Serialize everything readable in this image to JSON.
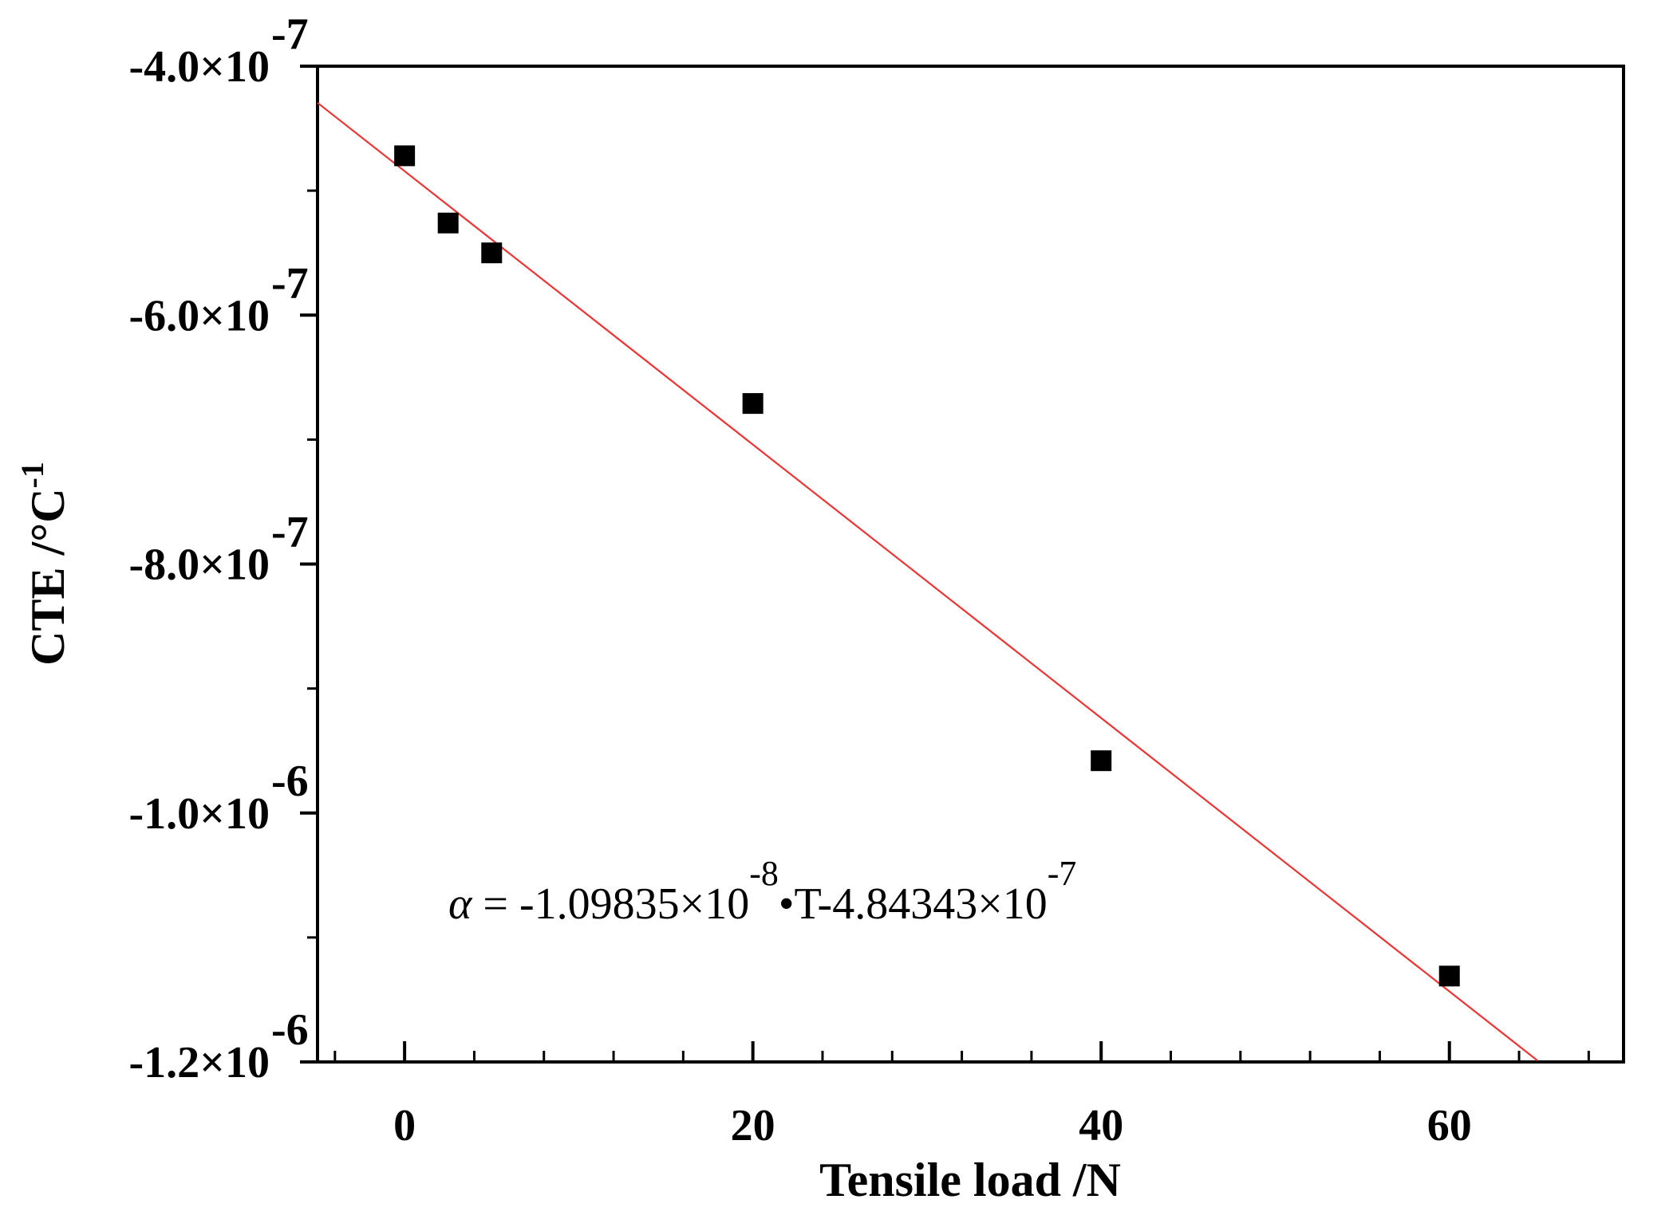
{
  "chart_data": {
    "type": "scatter",
    "title": "",
    "xlabel": "Tensile load /N",
    "ylabel": "CTE /°C",
    "ylabel_superscript": "-1",
    "xlim": [
      -5,
      70
    ],
    "ylim": [
      -1.2e-06,
      -4e-07
    ],
    "x_ticks": [
      0,
      20,
      40,
      60
    ],
    "x_tick_labels": [
      "0",
      "20",
      "40",
      "60"
    ],
    "x_minor_step": 4,
    "y_ticks": [
      -4e-07,
      -6e-07,
      -8e-07,
      -1e-06,
      -1.2e-06
    ],
    "y_tick_labels": [
      {
        "mantissa": "-4.0×10",
        "exp": "-7"
      },
      {
        "mantissa": "-6.0×10",
        "exp": "-7"
      },
      {
        "mantissa": "-8.0×10",
        "exp": "-7"
      },
      {
        "mantissa": "-1.0×10",
        "exp": "-6"
      },
      {
        "mantissa": "-1.2×10",
        "exp": "-6"
      }
    ],
    "y_minor_step": 1e-07,
    "grid": false,
    "series": [
      {
        "marker": "square",
        "color": "#000000",
        "points": [
          {
            "x": 0,
            "y": -4.72e-07
          },
          {
            "x": 2.5,
            "y": -5.26e-07
          },
          {
            "x": 5,
            "y": -5.5e-07
          },
          {
            "x": 20,
            "y": -6.71e-07
          },
          {
            "x": 40,
            "y": -9.58e-07
          },
          {
            "x": 60,
            "y": -1.131e-06
          }
        ]
      }
    ],
    "fit_line": {
      "color": "#ee3333",
      "slope": -1.09835e-08,
      "intercept": -4.84343e-07,
      "x_range": [
        -5,
        65.06
      ]
    },
    "annotation": {
      "prefix": "α",
      "part1": " = -1.09835×10",
      "exp1": "-8",
      "part2": "•T-4.84343×10",
      "exp2": "-7"
    }
  }
}
